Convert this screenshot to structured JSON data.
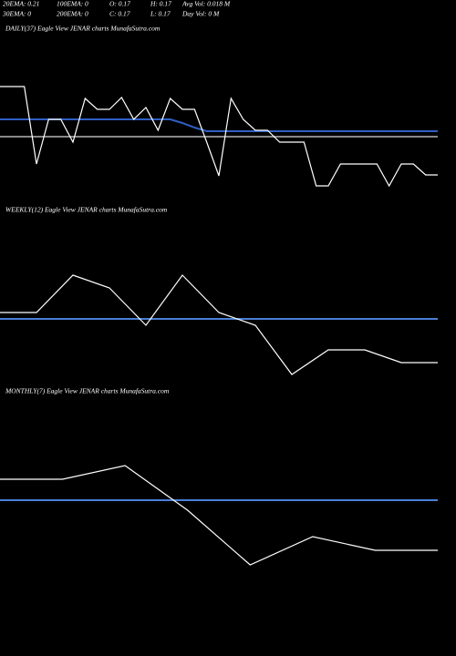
{
  "header": {
    "rows": [
      [
        "20EMA: 0.21",
        "100EMA: 0",
        "O: 0.17",
        "H: 0.17",
        "Avg Vol: 0.018 M"
      ],
      [
        "30EMA: 0",
        "200EMA: 0",
        "C: 0.17",
        "L: 0.17",
        "Day Vol: 0  M"
      ]
    ]
  },
  "chart_data": [
    {
      "type": "line",
      "title": "DAILY(37) Eagle  View  JENAR charts MunafaSutra.com",
      "ylim": [
        0,
        200
      ],
      "series": [
        {
          "color": "#888888",
          "values": [
            80,
            80,
            80,
            80,
            80,
            80,
            80,
            80,
            80,
            80,
            80,
            80,
            80,
            80,
            80,
            80,
            80,
            80,
            80,
            80,
            80,
            80,
            80,
            80,
            80,
            80,
            80,
            80,
            80,
            80,
            80,
            80,
            80,
            80,
            80,
            80,
            80
          ]
        },
        {
          "color": "#2f5fc4",
          "values": [
            99,
            99,
            99,
            99,
            99,
            99,
            99,
            99,
            99,
            99,
            99,
            99,
            99,
            99,
            99,
            95,
            90,
            86,
            86,
            86,
            86,
            86,
            86,
            86,
            86,
            86,
            86,
            86,
            86,
            86,
            86,
            86,
            86,
            86,
            86,
            86,
            86
          ]
        },
        {
          "color": "#ffffff",
          "values": [
            135,
            135,
            135,
            50,
            99,
            99,
            74,
            122,
            110,
            110,
            123,
            99,
            112,
            87,
            122,
            110,
            110,
            74,
            37,
            122,
            99,
            87,
            87,
            74,
            74,
            74,
            26,
            26,
            50,
            50,
            50,
            50,
            26,
            50,
            50,
            38,
            38
          ]
        }
      ]
    },
    {
      "type": "line",
      "title": "WEEKLY(12) Eagle  View  JENAR charts MunafaSutra.com",
      "ylim": [
        0,
        200
      ],
      "series": [
        {
          "color": "#4a7fd8",
          "values": [
            75,
            75,
            75,
            75,
            75,
            75,
            75,
            75,
            75,
            75,
            75,
            75,
            75
          ]
        },
        {
          "color": "#ffffff",
          "values": [
            82,
            82,
            123,
            109,
            68,
            123,
            82,
            68,
            14,
            41,
            41,
            27,
            27
          ]
        }
      ]
    },
    {
      "type": "line",
      "title": "MONTHLY(7) Eagle  View  JENAR charts MunafaSutra.com",
      "ylim": [
        0,
        200
      ],
      "series": [
        {
          "color": "#4a7fd8",
          "values": [
            131,
            131,
            131,
            131,
            131,
            131,
            131,
            131
          ]
        },
        {
          "color": "#ffffff",
          "values": [
            154,
            154,
            169,
            120,
            60,
            91,
            76,
            76
          ]
        }
      ]
    }
  ]
}
